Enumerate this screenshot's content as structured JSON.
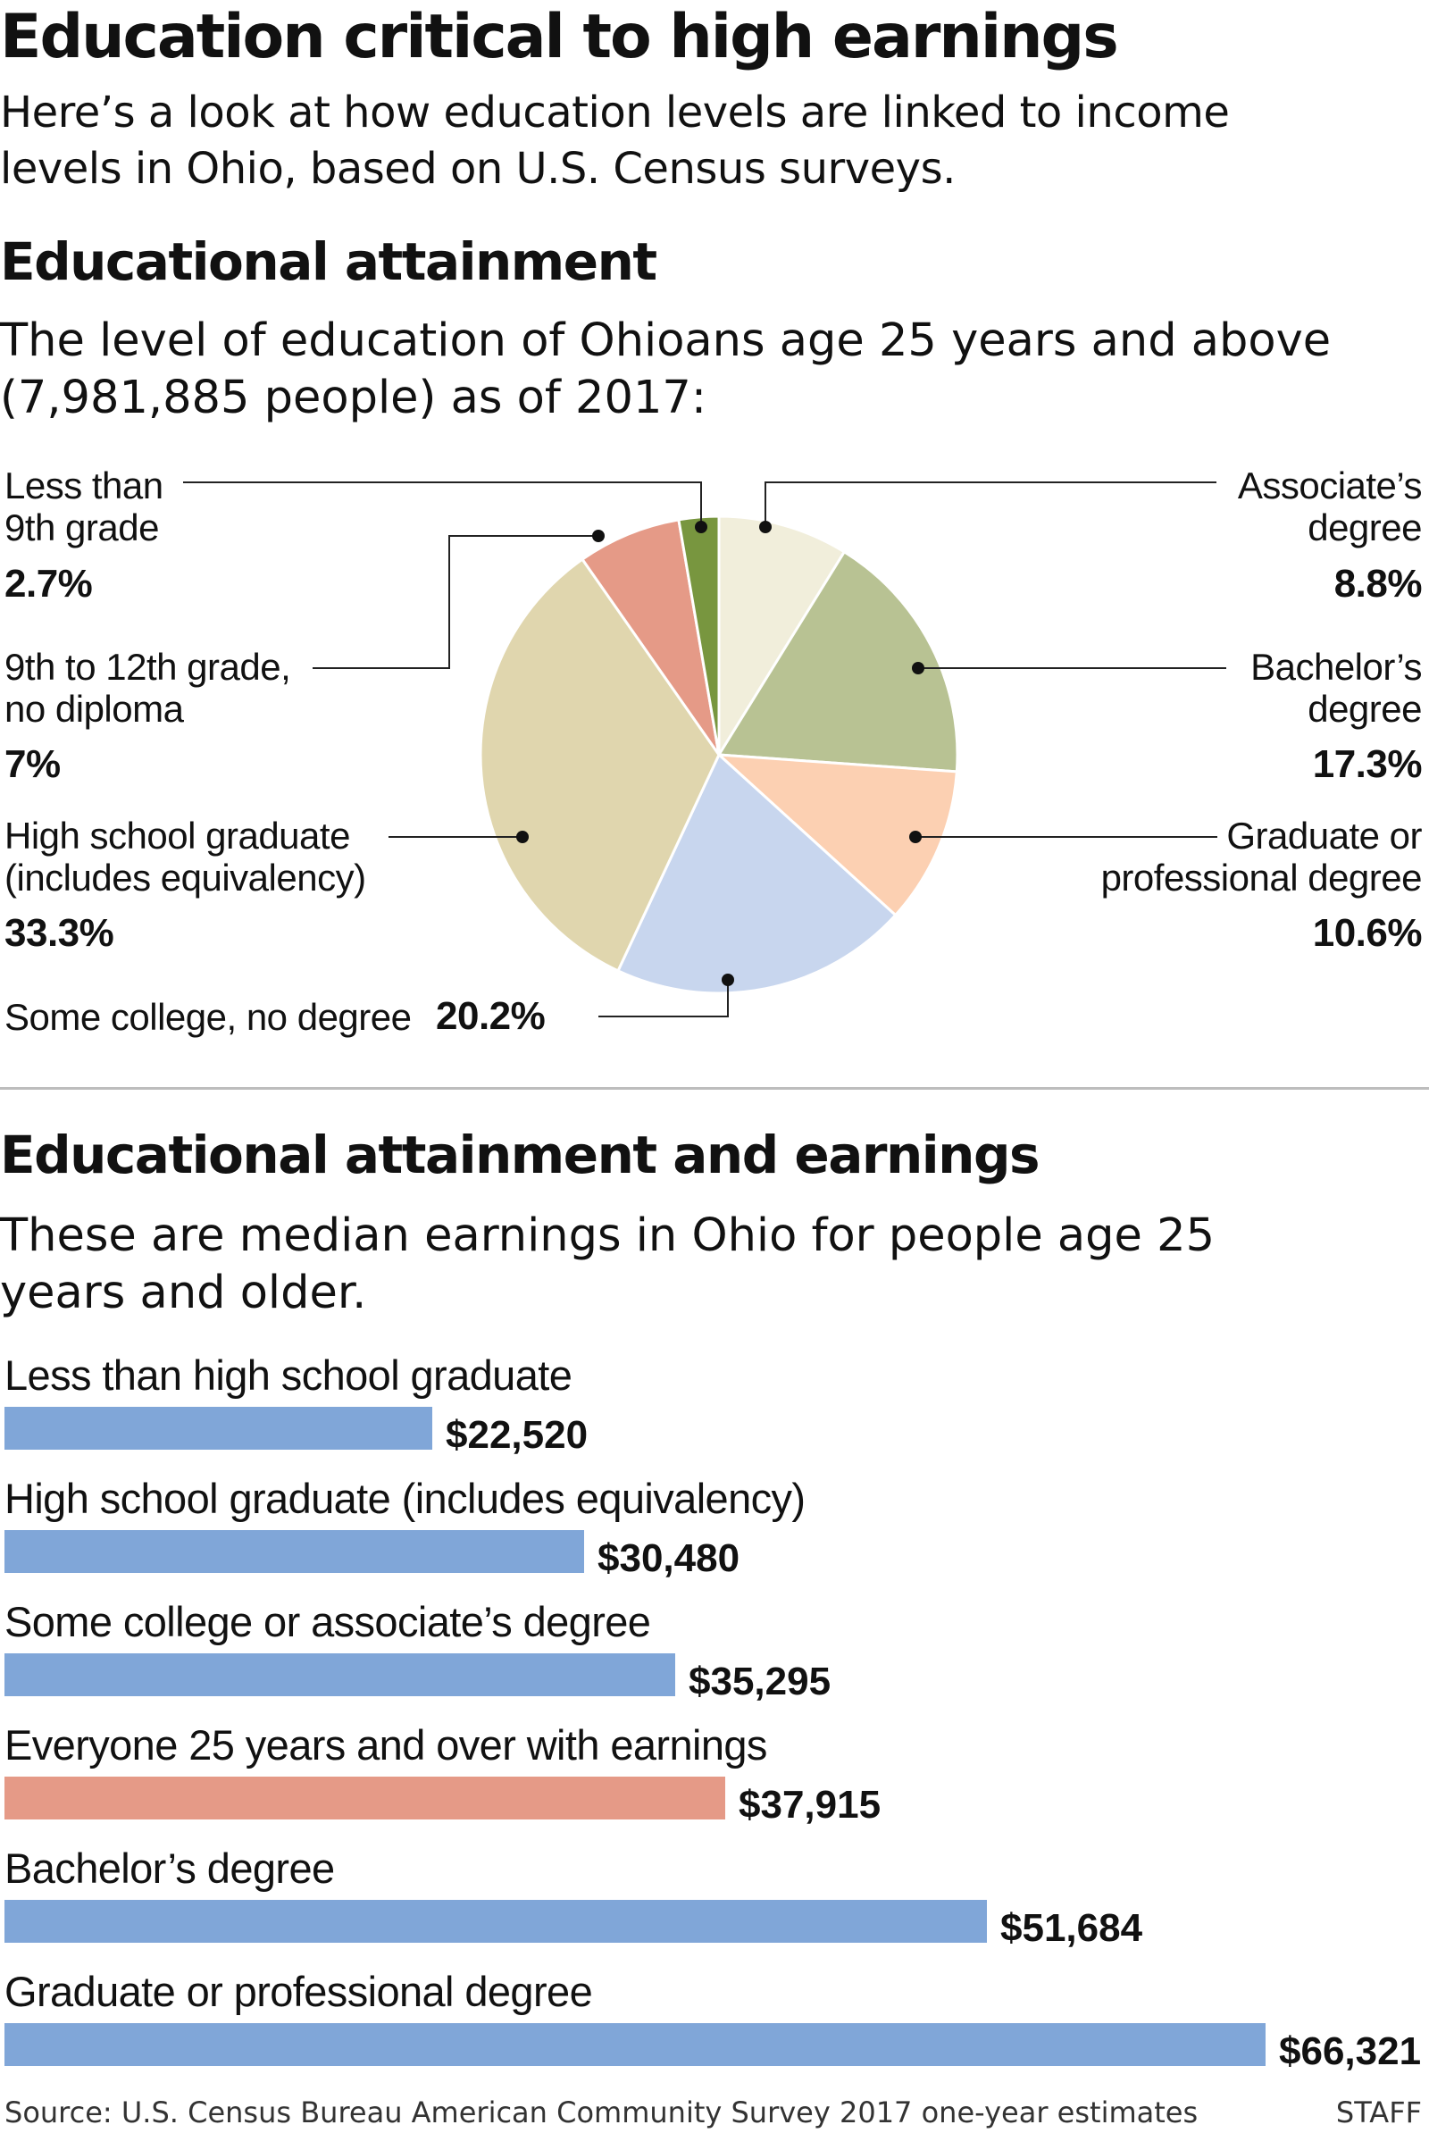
{
  "header": {
    "title": "Education critical to high earnings",
    "intro": "Here’s a look at how education levels are linked to income levels in Ohio, based on U.S. Census surveys."
  },
  "pie_section": {
    "title": "Educational attainment",
    "subtitle": "The level of education of Ohioans age 25 years and above (7,981,885 people) as of 2017:"
  },
  "bar_section": {
    "title": "Educational attainment and earnings",
    "subtitle": "These are median earnings in Ohio for people age 25 years and older."
  },
  "footer": {
    "source": "Source: U.S. Census Bureau American Community Survey 2017 one-year estimates",
    "credit": "STAFF"
  },
  "chart_data": [
    {
      "type": "pie",
      "title": "Educational attainment",
      "unit": "%",
      "slices": [
        {
          "label_lines": [
            "Associate’s",
            "degree"
          ],
          "label": "Associate’s degree",
          "value": 8.8,
          "value_label": "8.8%",
          "color": "#f1eedb"
        },
        {
          "label_lines": [
            "Bachelor’s",
            "degree"
          ],
          "label": "Bachelor’s degree",
          "value": 17.3,
          "value_label": "17.3%",
          "color": "#b8c293"
        },
        {
          "label_lines": [
            "Graduate or",
            "professional degree"
          ],
          "label": "Graduate or professional degree",
          "value": 10.6,
          "value_label": "10.6%",
          "color": "#fcd0b2"
        },
        {
          "label_lines": [
            "Some college, no degree"
          ],
          "label": "Some college, no degree",
          "value": 20.2,
          "value_label": "20.2%",
          "color": "#c8d6ee"
        },
        {
          "label_lines": [
            "High school graduate",
            "(includes equivalency)"
          ],
          "label": "High school graduate (includes equivalency)",
          "value": 33.3,
          "value_label": "33.3%",
          "color": "#e0d6ae"
        },
        {
          "label_lines": [
            "9th to 12th grade,",
            "no diploma"
          ],
          "label": "9th to 12th grade, no diploma",
          "value": 7,
          "value_label": "7%",
          "color": "#e59a87"
        },
        {
          "label_lines": [
            "Less than",
            "9th grade"
          ],
          "label": "Less than 9th grade",
          "value": 2.7,
          "value_label": "2.7%",
          "color": "#78963f"
        }
      ]
    },
    {
      "type": "bar",
      "orientation": "horizontal",
      "title": "Educational attainment and earnings",
      "unit": "$",
      "categories": [
        "Less than high school graduate",
        "High school graduate (includes equivalency)",
        "Some college or associate’s degree",
        "Everyone 25 years and over with earnings",
        "Bachelor’s degree",
        "Graduate or professional degree"
      ],
      "values": [
        22520,
        30480,
        35295,
        37915,
        51684,
        66321
      ],
      "value_labels": [
        "$22,520",
        "$30,480",
        "$35,295",
        "$37,915",
        "$51,684",
        "$66,321"
      ],
      "colors": [
        "#80a6d8",
        "#80a6d8",
        "#80a6d8",
        "#e59a87",
        "#80a6d8",
        "#80a6d8"
      ]
    }
  ]
}
